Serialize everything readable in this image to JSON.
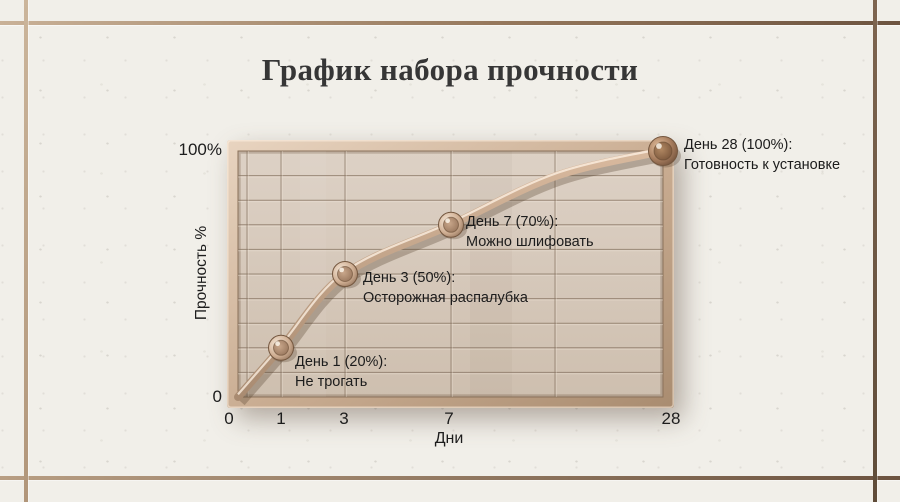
{
  "title": "График набора прочности",
  "chart_data": {
    "type": "line",
    "title": "График набора прочности",
    "xlabel": "Дни",
    "ylabel": "Прочность %",
    "x": [
      0,
      1,
      3,
      7,
      28
    ],
    "values": [
      0,
      20,
      50,
      70,
      100
    ],
    "xtick_labels": [
      "0",
      "1",
      "3",
      "7",
      "28"
    ],
    "ytick_labels": [
      "0",
      "100%"
    ],
    "ylim": [
      0,
      100
    ],
    "grid": true,
    "legend": false,
    "annotations": [
      {
        "day": 1,
        "percent": 20,
        "title": "День 1 (20%):",
        "note": "Не трогать"
      },
      {
        "day": 3,
        "percent": 50,
        "title": "День 3 (50%):",
        "note": "Осторожная распалубка"
      },
      {
        "day": 7,
        "percent": 70,
        "title": "День 7 (70%):",
        "note": "Можно шлифовать"
      },
      {
        "day": 28,
        "percent": 100,
        "title": "День 28 (100%):",
        "note": "Готовность к установке"
      }
    ]
  },
  "colors": {
    "wall": "#f1efe9",
    "grout": "#8a6f57",
    "frame_light": "#e6d2be",
    "frame_dark": "#a58a6f",
    "panel": "#d8cbbe",
    "grid_line": "#8a7765",
    "curve_band": "#c3a288",
    "knob_bronze": "#b08a6c",
    "knob_copper": "#8a5f43",
    "text": "#1d1d1d",
    "title_text": "#363636"
  }
}
